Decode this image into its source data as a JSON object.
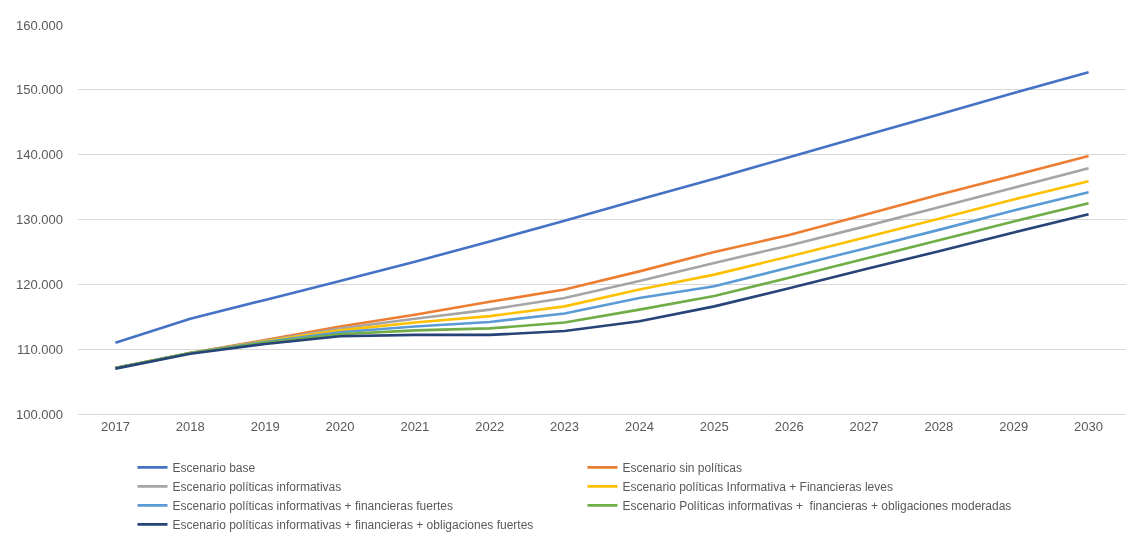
{
  "chart_data": {
    "type": "line",
    "categories": [
      "2017",
      "2018",
      "2019",
      "2020",
      "2021",
      "2022",
      "2023",
      "2024",
      "2025",
      "2026",
      "2027",
      "2028",
      "2029",
      "2030"
    ],
    "series": [
      {
        "name": "Escenario base",
        "color": "#4472c4",
        "values": [
          111000,
          114700,
          117600,
          120500,
          123500,
          126600,
          129800,
          133100,
          136300,
          139600,
          142900,
          146200,
          149500,
          152700
        ]
      },
      {
        "name": "Escenario sin políticas",
        "color": "#ed7d31",
        "values": [
          107100,
          109400,
          111400,
          113500,
          115300,
          117300,
          119200,
          122000,
          125000,
          127600,
          130700,
          133800,
          136800,
          139800
        ]
      },
      {
        "name": "Escenario políticas informativas",
        "color": "#a5a5a5",
        "values": [
          107100,
          109400,
          111300,
          113200,
          114700,
          116100,
          117900,
          120500,
          123300,
          126000,
          128900,
          131900,
          134900,
          137900
        ]
      },
      {
        "name": "Escenario políticas Informativa + Financieras leves",
        "color": "#ffc000",
        "values": [
          107100,
          109400,
          111200,
          112900,
          114100,
          115100,
          116600,
          119200,
          121500,
          124300,
          127200,
          130100,
          133100,
          135900
        ]
      },
      {
        "name": "Escenario políticas informativas + financieras fuertes",
        "color": "#5b9bd5",
        "values": [
          107100,
          109400,
          111100,
          112600,
          113500,
          114200,
          115500,
          117900,
          119700,
          122600,
          125500,
          128400,
          131400,
          134200
        ]
      },
      {
        "name": "Escenario Políticas informativas +  financieras + obligaciones moderadas",
        "color": "#70ad47",
        "values": [
          107100,
          109400,
          111000,
          112300,
          112900,
          113200,
          114100,
          116100,
          118200,
          121000,
          123900,
          126800,
          129700,
          132500
        ]
      },
      {
        "name": "Escenario políticas informativas + financieras + obligaciones fuertes",
        "color": "#264478",
        "values": [
          107000,
          109300,
          110800,
          112000,
          112200,
          112200,
          112800,
          114300,
          116600,
          119400,
          122300,
          125100,
          128000,
          130800
        ]
      }
    ],
    "ylim": [
      100000,
      160000
    ],
    "yticks": [
      {
        "value": 100000,
        "label": "100.000"
      },
      {
        "value": 110000,
        "label": "110.000"
      },
      {
        "value": 120000,
        "label": "120.000"
      },
      {
        "value": 130000,
        "label": "130.000"
      },
      {
        "value": 140000,
        "label": "140.000"
      },
      {
        "value": 150000,
        "label": "150.000"
      },
      {
        "value": 160000,
        "label": "160.000"
      }
    ],
    "grid": "y",
    "legend": "bottom",
    "marker": "none",
    "line_style": "solid"
  }
}
